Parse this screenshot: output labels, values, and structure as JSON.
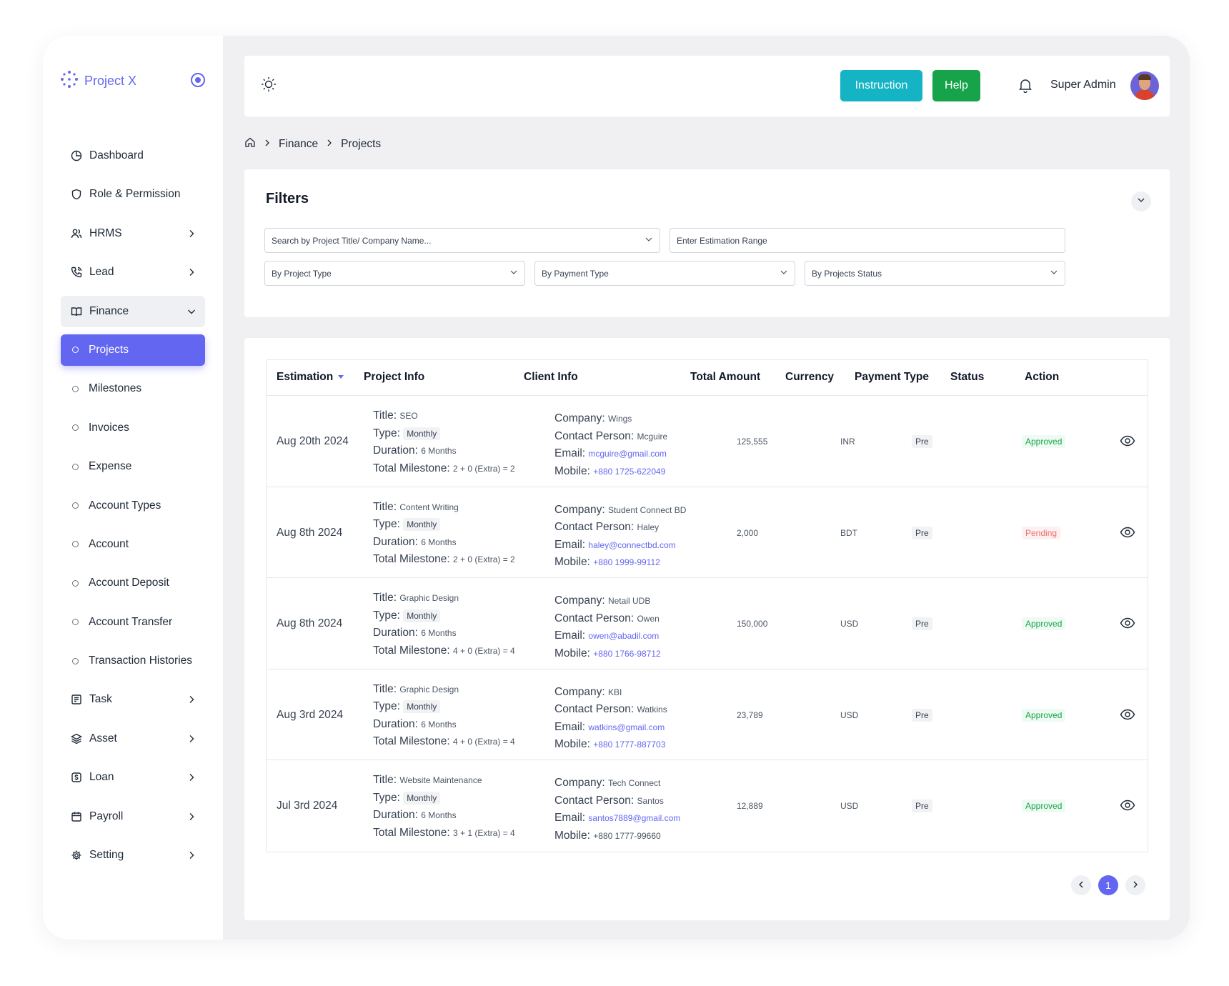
{
  "brand": {
    "name": "Project X"
  },
  "sidebar": {
    "items": [
      {
        "label": "Dashboard"
      },
      {
        "label": "Role & Permission"
      },
      {
        "label": "HRMS"
      },
      {
        "label": "Lead"
      },
      {
        "label": "Finance"
      },
      {
        "label": "Projects"
      },
      {
        "label": "Milestones"
      },
      {
        "label": "Invoices"
      },
      {
        "label": "Expense"
      },
      {
        "label": "Account Types"
      },
      {
        "label": "Account"
      },
      {
        "label": "Account Deposit"
      },
      {
        "label": "Account Transfer"
      },
      {
        "label": "Transaction Histories"
      },
      {
        "label": "Task"
      },
      {
        "label": "Asset"
      },
      {
        "label": "Loan"
      },
      {
        "label": "Payroll"
      },
      {
        "label": "Setting"
      }
    ]
  },
  "header": {
    "instruction_label": "Instruction",
    "help_label": "Help",
    "user_name": "Super Admin"
  },
  "breadcrumb": {
    "items": [
      "Finance",
      "Projects"
    ]
  },
  "filters": {
    "title": "Filters",
    "search_placeholder": "Search by Project Title/ Company Name...",
    "estimation_placeholder": "Enter Estimation Range",
    "project_type": "By Project Type",
    "payment_type": "By Payment Type",
    "projects_status": "By Projects Status"
  },
  "table": {
    "columns": [
      "Estimation",
      "Project Info",
      "Client Info",
      "Total Amount",
      "Currency",
      "Payment Type",
      "Status",
      "Action"
    ],
    "field_labels": {
      "title": "Title:",
      "type": "Type:",
      "duration": "Duration:",
      "total_milestone": "Total Milestone:",
      "company": "Company:",
      "contact_person": "Contact Person:",
      "email": "Email:",
      "mobile": "Mobile:"
    },
    "rows": [
      {
        "estimation": "Aug 20th 2024",
        "title": "SEO",
        "type": "Monthly",
        "duration": "6 Months",
        "milestone": "2 + 0 (Extra) = 2",
        "company": "Wings",
        "contact": "Mcguire",
        "email": "mcguire@gmail.com",
        "mobile": "+880 1725-622049",
        "amount": "125,555",
        "currency": "INR",
        "payment": "Pre",
        "status": "Approved"
      },
      {
        "estimation": "Aug 8th 2024",
        "title": "Content Writing",
        "type": "Monthly",
        "duration": "6 Months",
        "milestone": "2 + 0 (Extra) = 2",
        "company": "Student Connect BD",
        "contact": "Haley",
        "email": "haley@connectbd.com",
        "mobile": "+880 1999-99112",
        "amount": "2,000",
        "currency": "BDT",
        "payment": "Pre",
        "status": "Pending"
      },
      {
        "estimation": "Aug 8th 2024",
        "title": "Graphic Design",
        "type": "Monthly",
        "duration": "6 Months",
        "milestone": "4 + 0 (Extra) = 4",
        "company": "Netail UDB",
        "contact": "Owen",
        "email": "owen@abadil.com",
        "mobile": "+880 1766-98712",
        "amount": "150,000",
        "currency": "USD",
        "payment": "Pre",
        "status": "Approved"
      },
      {
        "estimation": "Aug 3rd 2024",
        "title": "Graphic Design",
        "type": "Monthly",
        "duration": "6 Months",
        "milestone": "4 + 0 (Extra) = 4",
        "company": "KBI",
        "contact": "Watkins",
        "email": "watkins@gmail.com",
        "mobile": "+880 1777-887703",
        "amount": "23,789",
        "currency": "USD",
        "payment": "Pre",
        "status": "Approved"
      },
      {
        "estimation": "Jul 3rd 2024",
        "title": "Website Maintenance",
        "type": "Monthly",
        "duration": "6 Months",
        "milestone": "3 + 1 (Extra) = 4",
        "company": "Tech Connect",
        "contact": "Santos",
        "email": "santos7889@gmail.com",
        "mobile": "+880 1777-99660",
        "amount": "12,889",
        "currency": "USD",
        "payment": "Pre",
        "status": "Approved"
      }
    ]
  },
  "pagination": {
    "current": "1"
  },
  "colors": {
    "accent": "#6366f1",
    "instruction": "#14b4c4",
    "help": "#16a34a",
    "approved": "#16a34a",
    "pending": "#ef6e6e"
  }
}
